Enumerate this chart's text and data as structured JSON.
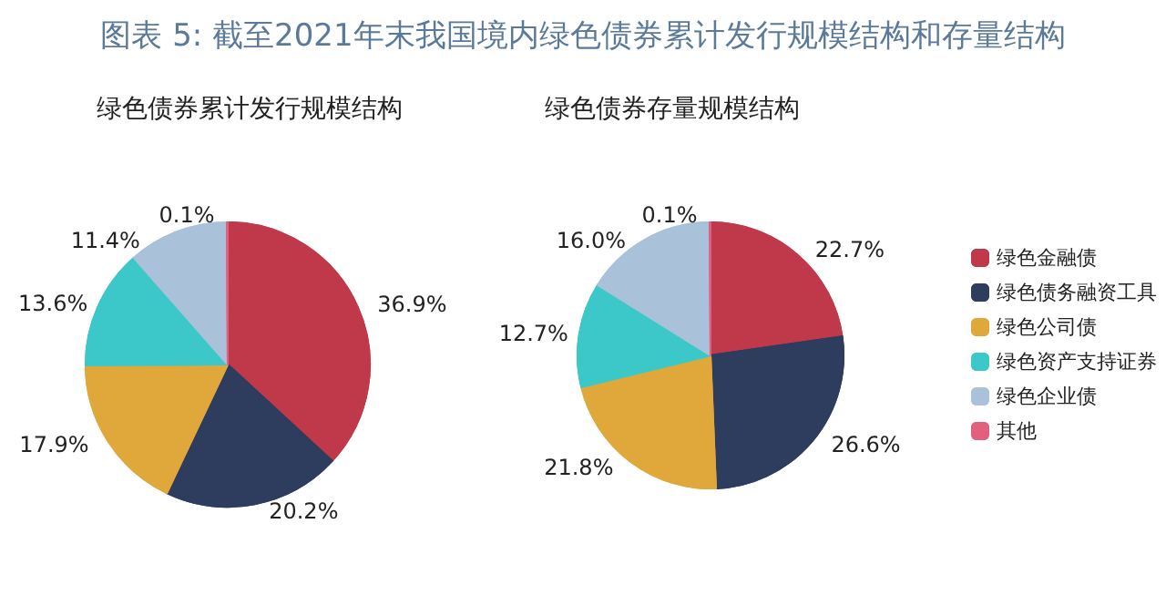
{
  "chart_data": [
    {
      "type": "pie",
      "title": "图表 5:    截至2021年末我国境内绿色债券累计发行规模结构和存量结构",
      "subtitle": "绿色债券累计发行规模结构",
      "categories": [
        null,
        null,
        null,
        null,
        null,
        null
      ],
      "values": [
        36.9,
        20.2,
        17.9,
        13.6,
        11.4,
        0.1
      ],
      "value_labels": [
        "36.9%",
        "20.2%",
        "17.9%",
        "13.6%",
        "11.4%",
        "0.1%"
      ],
      "colors": [
        "#c0394b",
        "#2e3d5e",
        "#e0a83a",
        "#3cc8c8",
        "#a9c1d9",
        "#e0607e"
      ],
      "legend": false
    },
    {
      "type": "pie",
      "title": "绿色债券存量规模结构",
      "categories": [
        "绿色金融债",
        "绿色债务融资工具",
        "绿色公司债",
        "绿色资产支持证券",
        "绿色企业债",
        "其他"
      ],
      "values": [
        22.7,
        26.6,
        21.8,
        12.7,
        16.0,
        0.1
      ],
      "value_labels": [
        "22.7%",
        "26.6%",
        "21.8%",
        "12.7%",
        "16.0%",
        "0.1%"
      ],
      "colors": [
        "#c0394b",
        "#2e3d5e",
        "#e0a83a",
        "#3cc8c8",
        "#a9c1d9",
        "#e0607e"
      ],
      "legend": "right"
    }
  ]
}
